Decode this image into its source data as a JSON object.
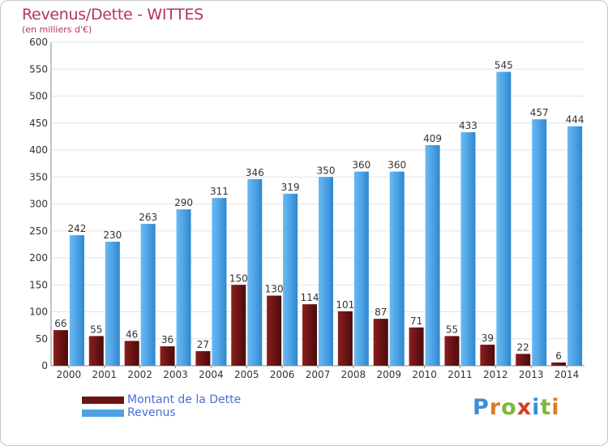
{
  "header": {
    "title": "Revenus/Dette - WITTES",
    "subtitle": "(en milliers d'€)"
  },
  "chart_data": {
    "type": "bar",
    "categories": [
      "2000",
      "2001",
      "2002",
      "2003",
      "2004",
      "2005",
      "2006",
      "2007",
      "2008",
      "2009",
      "2010",
      "2011",
      "2012",
      "2013",
      "2014"
    ],
    "series": [
      {
        "name": "Montant de la Dette",
        "values": [
          66,
          55,
          46,
          36,
          27,
          150,
          130,
          114,
          101,
          87,
          71,
          55,
          39,
          22,
          6
        ],
        "color": "#6b1414"
      },
      {
        "name": "Revenus",
        "values": [
          242,
          230,
          263,
          290,
          311,
          346,
          319,
          350,
          360,
          360,
          409,
          433,
          545,
          457,
          444
        ],
        "color": "#4da3e6"
      }
    ],
    "y_ticks": [
      0,
      50,
      100,
      150,
      200,
      250,
      300,
      350,
      400,
      450,
      500,
      550,
      600
    ],
    "ylim": [
      0,
      600
    ],
    "grid": true,
    "legend": "bottom-left"
  },
  "legend": {
    "items": [
      {
        "label": "Montant de la Dette",
        "color": "#6b1414"
      },
      {
        "label": "Revenus",
        "color": "#4da3e6"
      }
    ]
  },
  "logo": {
    "letters": [
      "P",
      "r",
      "o",
      "x",
      "i",
      "t",
      "i"
    ]
  }
}
